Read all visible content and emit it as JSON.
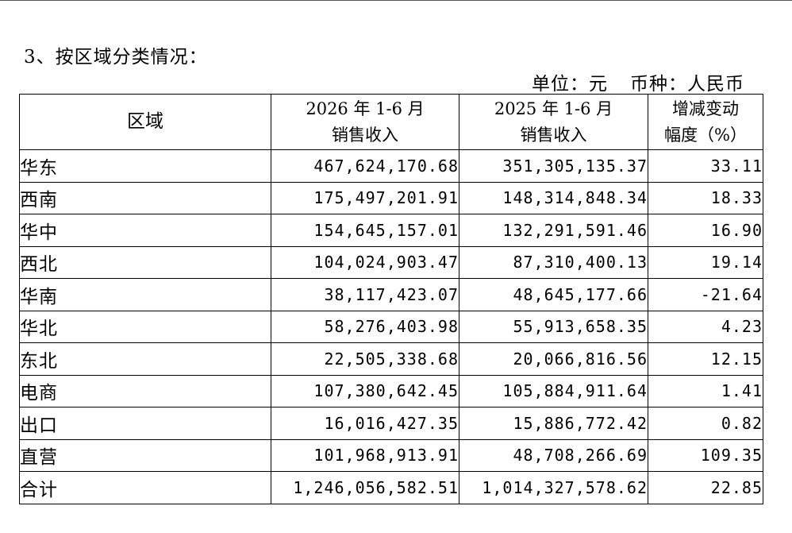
{
  "section_title": "3、按区域分类情况：",
  "unit": {
    "unit_label": "单位：元",
    "currency_label": "币种：人民币"
  },
  "table": {
    "headers": {
      "region": "区域",
      "col1_line1": "2026 年 1-6 月",
      "col1_line2": "销售收入",
      "col2_line1": "2025 年 1-6 月",
      "col2_line2": "销售收入",
      "col3_line1": "增减变动",
      "col3_line2": "幅度（%）"
    },
    "rows": [
      {
        "region": "华东",
        "rev_2026": "467,624,170.68",
        "rev_2025": "351,305,135.37",
        "change": "33.11"
      },
      {
        "region": "西南",
        "rev_2026": "175,497,201.91",
        "rev_2025": "148,314,848.34",
        "change": "18.33"
      },
      {
        "region": "华中",
        "rev_2026": "154,645,157.01",
        "rev_2025": "132,291,591.46",
        "change": "16.90"
      },
      {
        "region": "西北",
        "rev_2026": "104,024,903.47",
        "rev_2025": "87,310,400.13",
        "change": "19.14"
      },
      {
        "region": "华南",
        "rev_2026": "38,117,423.07",
        "rev_2025": "48,645,177.66",
        "change": "-21.64"
      },
      {
        "region": "华北",
        "rev_2026": "58,276,403.98",
        "rev_2025": "55,913,658.35",
        "change": "4.23"
      },
      {
        "region": "东北",
        "rev_2026": "22,505,338.68",
        "rev_2025": "20,066,816.56",
        "change": "12.15"
      },
      {
        "region": "电商",
        "rev_2026": "107,380,642.45",
        "rev_2025": "105,884,911.64",
        "change": "1.41"
      },
      {
        "region": "出口",
        "rev_2026": "16,016,427.35",
        "rev_2025": "15,886,772.42",
        "change": "0.82"
      },
      {
        "region": "直营",
        "rev_2026": "101,968,913.91",
        "rev_2025": "48,708,266.69",
        "change": "109.35"
      },
      {
        "region": "合计",
        "rev_2026": "1,246,056,582.51",
        "rev_2025": "1,014,327,578.62",
        "change": "22.85"
      }
    ]
  }
}
